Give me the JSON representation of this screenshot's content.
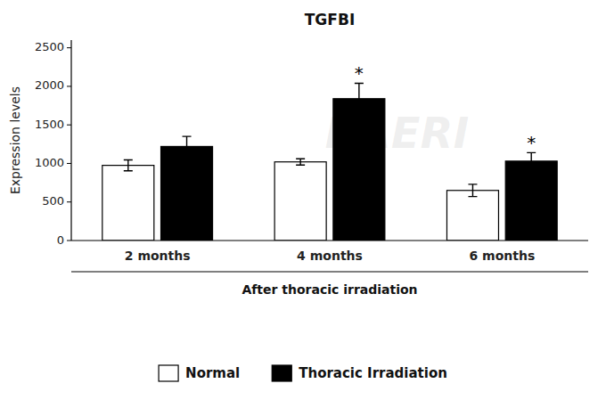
{
  "chart_data": {
    "type": "bar",
    "title": "TGFBI",
    "x_label": "After thoracic irradiation",
    "y_label": "Expression levels",
    "categories": [
      "2 months",
      "4 months",
      "6 months"
    ],
    "series": [
      {
        "name": "Normal",
        "color": "#ffffff",
        "values": [
          975,
          1020,
          650
        ],
        "errors": [
          70,
          40,
          80
        ]
      },
      {
        "name": "Thoracic Irradiation",
        "color": "#000000",
        "values": [
          1220,
          1840,
          1030
        ],
        "errors": [
          130,
          200,
          110
        ]
      }
    ],
    "annotations": [
      {
        "text": "KAERI"
      },
      {
        "text": "*",
        "series": 1,
        "index": 1
      },
      {
        "text": "*",
        "series": 1,
        "index": 2
      }
    ],
    "ylim": [
      0,
      2600
    ],
    "yticks": [
      0,
      500,
      1000,
      1500,
      2000,
      2500
    ],
    "grid": false,
    "legend": "bottom"
  }
}
